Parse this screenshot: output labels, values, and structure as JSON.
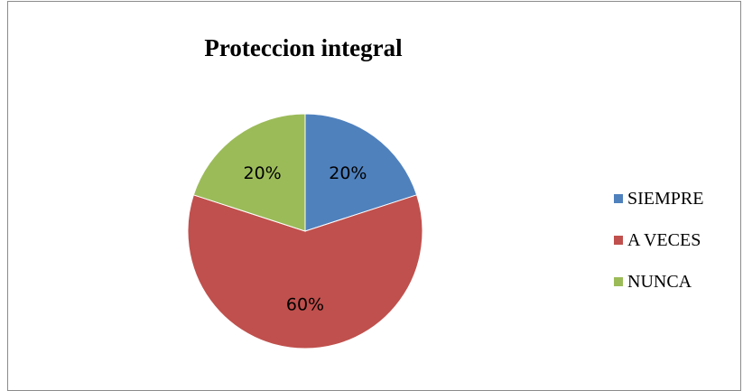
{
  "chart_data": {
    "type": "pie",
    "title": "Proteccion integral",
    "slices": [
      {
        "name": "SIEMPRE",
        "value": 20,
        "label": "20%",
        "color": "#4f81bd"
      },
      {
        "name": "A VECES",
        "value": 60,
        "label": "60%",
        "color": "#c0504d"
      },
      {
        "name": "NUNCA",
        "value": 20,
        "label": "20%",
        "color": "#9bbb59"
      }
    ],
    "legend_position": "right",
    "start_angle": "12 o'clock",
    "direction": "clockwise"
  }
}
